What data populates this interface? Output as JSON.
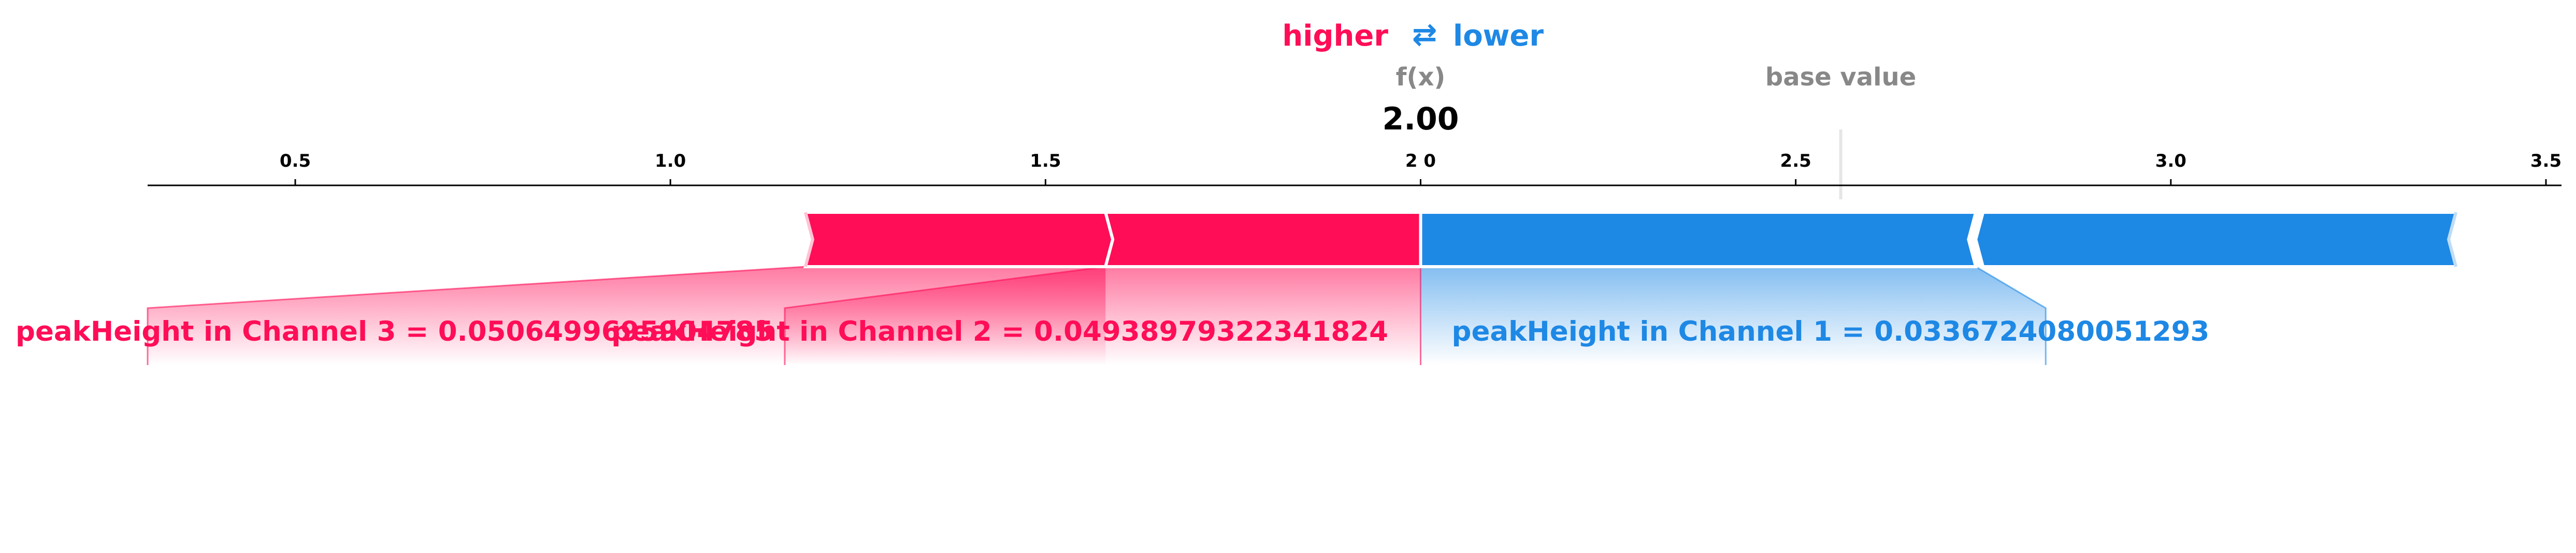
{
  "legend": {
    "higher_label": "higher",
    "arrow_symbol": "⇄",
    "lower_label": "lower",
    "higher_color": "#ff0d57",
    "lower_color": "#1e88e5"
  },
  "fx_label": "f(x)",
  "fx_value": "2.00",
  "base_value_label": "base value",
  "chart_data": {
    "type": "force",
    "xlim": [
      0.3,
      3.52
    ],
    "ticks": [
      {
        "value": 0.5,
        "label": "0.5"
      },
      {
        "value": 1.0,
        "label": "1.0"
      },
      {
        "value": 1.5,
        "label": "1.5"
      },
      {
        "value": 2.0,
        "label": "2 0"
      },
      {
        "value": 2.5,
        "label": "2.5"
      },
      {
        "value": 3.0,
        "label": "3.0"
      },
      {
        "value": 3.5,
        "label": "3.5"
      }
    ],
    "output_value": 2.0,
    "base_value": 2.56,
    "positive_features": [
      {
        "label": "peakHeight in Channel 3 = 0.0506499695904785",
        "start": 1.18,
        "end": 1.58
      },
      {
        "label": "peakHeight in Channel 2 = 0.04938979322341824",
        "start": 1.58,
        "end": 2.0
      }
    ],
    "negative_features": [
      {
        "label": "peakHeight in Channel 1 = 0.0336724080051293",
        "start": 2.0,
        "end": 2.74
      },
      {
        "label": "",
        "start": 2.74,
        "end": 3.38
      }
    ]
  }
}
